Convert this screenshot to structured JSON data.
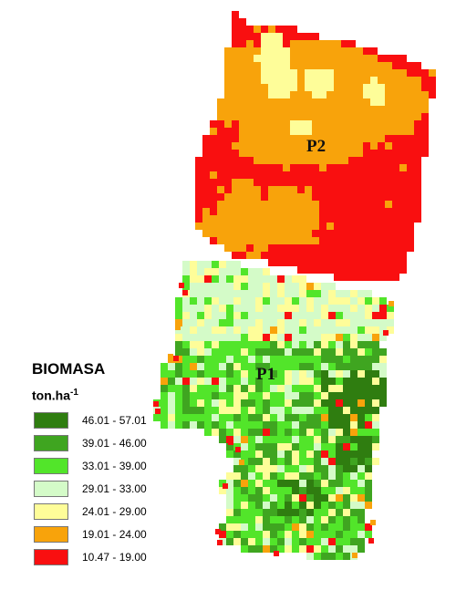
{
  "map": {
    "plot_labels": [
      "P2",
      "P1"
    ]
  },
  "legend": {
    "title": "BIOMASA",
    "unit_base": "ton.ha",
    "unit_exp": "-1",
    "classes": [
      {
        "label": "46.01 - 57.01",
        "color": "#2f7d10"
      },
      {
        "label": "39.01 - 46.00",
        "color": "#3fa520"
      },
      {
        "label": "33.01 - 39.00",
        "color": "#52e52a"
      },
      {
        "label": "29.01 - 33.00",
        "color": "#d4fbc8"
      },
      {
        "label": "24.01 - 29.00",
        "color": "#fefd99"
      },
      {
        "label": "19.01 - 24.00",
        "color": "#f8a30b"
      },
      {
        "label": "10.47 - 19.00",
        "color": "#f90f10"
      }
    ]
  }
}
